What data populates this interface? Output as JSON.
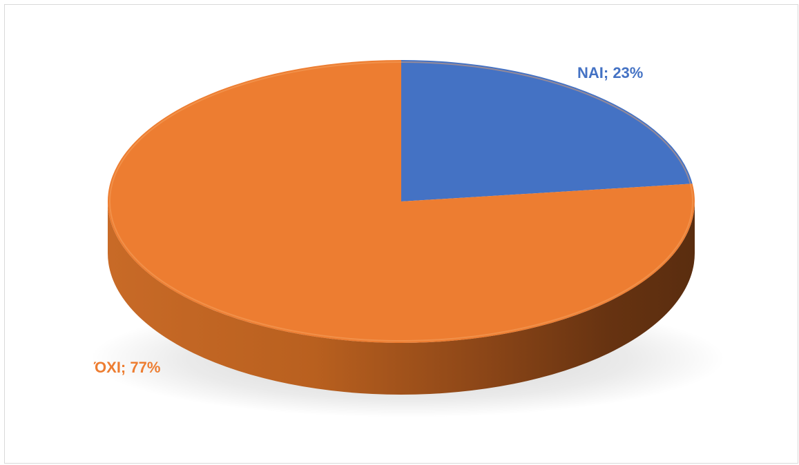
{
  "chart_data": {
    "type": "pie",
    "title": "",
    "categories": [
      "NAI",
      "ΌΧΙ"
    ],
    "values": [
      23,
      77
    ],
    "unit": "%",
    "labels": [
      "NAI; 23%",
      "ΌΧΙ; 77%"
    ],
    "colors": [
      "#4472C4",
      "#ED7D31"
    ],
    "legend": "none",
    "style": "3d"
  }
}
